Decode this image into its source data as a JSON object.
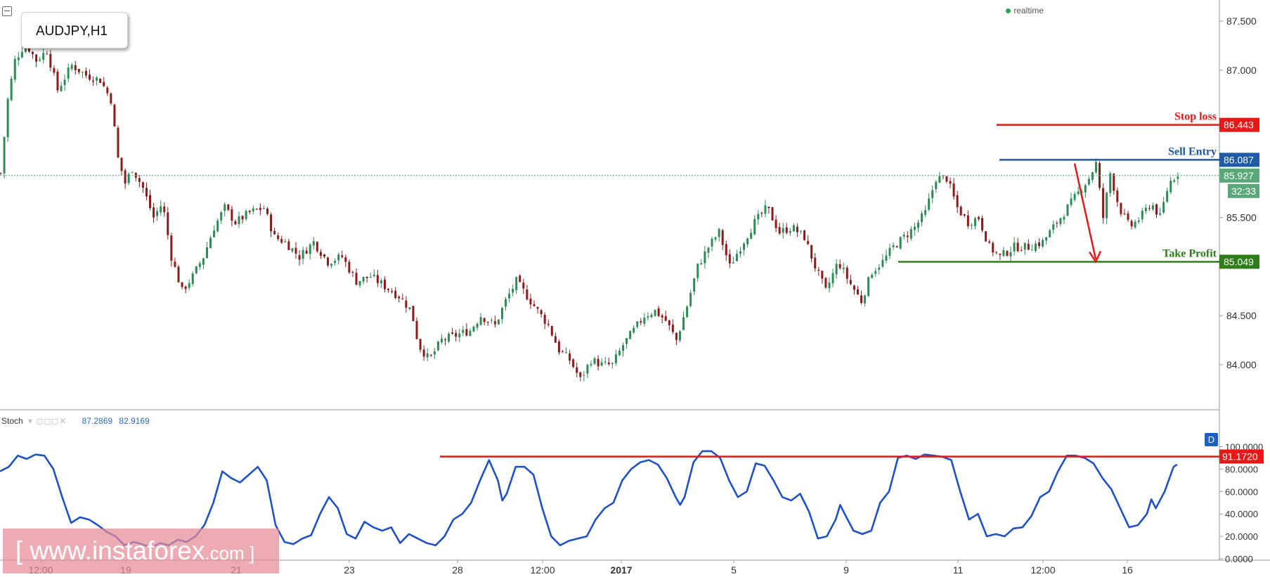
{
  "symbol": "AUDJPY,H1",
  "realtime_label": "realtime",
  "watermark": {
    "text": "[ www.instaforex",
    "suffix": ".com ]"
  },
  "stoch": {
    "name": "Stoch",
    "k_value": "87.2869",
    "d_value": "82.9169",
    "badge": "D"
  },
  "colors": {
    "up_candle": "#2e8b57",
    "down_candle": "#8b1a1a",
    "stop_loss": "#e81818",
    "sell_entry": "#1f5aa6",
    "take_profit": "#2e7d1a",
    "stoch_line": "#1f50c8",
    "last_price": "#5aa77a"
  },
  "chart_data": [
    {
      "type": "line",
      "subtype": "candlestick",
      "instrument": "AUDJPY",
      "timeframe": "H1",
      "title": "AUDJPY,H1",
      "ylim": [
        83.7,
        87.65
      ],
      "y_ticks": [
        "84.000",
        "84.500",
        "85.500",
        "87.000",
        "87.500"
      ],
      "x_ticks": [
        "12:00",
        "19",
        "21",
        "23",
        "28",
        "12:00",
        "2017",
        "5",
        "9",
        "11",
        "12:00",
        "16"
      ],
      "grid": false,
      "path_points": [
        [
          0,
          85.95
        ],
        [
          8,
          86.7
        ],
        [
          16,
          87.1
        ],
        [
          28,
          87.28
        ],
        [
          40,
          87.1
        ],
        [
          52,
          87.2
        ],
        [
          64,
          86.8
        ],
        [
          80,
          87.05
        ],
        [
          96,
          86.95
        ],
        [
          112,
          86.9
        ],
        [
          124,
          86.7
        ],
        [
          132,
          86.1
        ],
        [
          140,
          85.85
        ],
        [
          148,
          86.0
        ],
        [
          160,
          85.8
        ],
        [
          172,
          85.5
        ],
        [
          182,
          85.65
        ],
        [
          192,
          85.1
        ],
        [
          204,
          84.75
        ],
        [
          216,
          84.9
        ],
        [
          228,
          85.1
        ],
        [
          240,
          85.4
        ],
        [
          252,
          85.6
        ],
        [
          264,
          85.45
        ],
        [
          280,
          85.55
        ],
        [
          296,
          85.6
        ],
        [
          308,
          85.3
        ],
        [
          320,
          85.25
        ],
        [
          336,
          85.1
        ],
        [
          352,
          85.25
        ],
        [
          368,
          85.05
        ],
        [
          384,
          85.1
        ],
        [
          400,
          84.85
        ],
        [
          416,
          84.9
        ],
        [
          432,
          84.8
        ],
        [
          448,
          84.7
        ],
        [
          462,
          84.55
        ],
        [
          470,
          84.2
        ],
        [
          482,
          84.05
        ],
        [
          496,
          84.25
        ],
        [
          512,
          84.3
        ],
        [
          528,
          84.35
        ],
        [
          540,
          84.5
        ],
        [
          556,
          84.4
        ],
        [
          568,
          84.65
        ],
        [
          580,
          84.85
        ],
        [
          592,
          84.7
        ],
        [
          604,
          84.55
        ],
        [
          616,
          84.4
        ],
        [
          628,
          84.15
        ],
        [
          640,
          84.05
        ],
        [
          652,
          83.85
        ],
        [
          664,
          84.05
        ],
        [
          676,
          84.0
        ],
        [
          688,
          84.0
        ],
        [
          700,
          84.2
        ],
        [
          712,
          84.35
        ],
        [
          724,
          84.5
        ],
        [
          736,
          84.55
        ],
        [
          748,
          84.45
        ],
        [
          760,
          84.25
        ],
        [
          772,
          84.6
        ],
        [
          784,
          85.0
        ],
        [
          796,
          85.2
        ],
        [
          808,
          85.35
        ],
        [
          820,
          85.0
        ],
        [
          832,
          85.2
        ],
        [
          848,
          85.45
        ],
        [
          862,
          85.6
        ],
        [
          876,
          85.35
        ],
        [
          890,
          85.4
        ],
        [
          904,
          85.3
        ],
        [
          916,
          85.0
        ],
        [
          928,
          84.75
        ],
        [
          942,
          85.05
        ],
        [
          954,
          84.85
        ],
        [
          968,
          84.65
        ],
        [
          980,
          84.95
        ],
        [
          992,
          85.05
        ],
        [
          1004,
          85.2
        ],
        [
          1016,
          85.3
        ],
        [
          1028,
          85.4
        ],
        [
          1040,
          85.55
        ],
        [
          1052,
          85.9
        ],
        [
          1064,
          85.9
        ],
        [
          1076,
          85.6
        ],
        [
          1088,
          85.45
        ],
        [
          1100,
          85.5
        ],
        [
          1112,
          85.2
        ],
        [
          1124,
          85.1
        ],
        [
          1140,
          85.2
        ],
        [
          1156,
          85.2
        ],
        [
          1172,
          85.25
        ],
        [
          1188,
          85.45
        ],
        [
          1200,
          85.6
        ],
        [
          1212,
          85.75
        ],
        [
          1224,
          85.9
        ],
        [
          1232,
          86.05
        ],
        [
          1240,
          85.5
        ],
        [
          1248,
          85.95
        ],
        [
          1258,
          85.6
        ],
        [
          1270,
          85.4
        ],
        [
          1282,
          85.5
        ],
        [
          1294,
          85.65
        ],
        [
          1304,
          85.5
        ],
        [
          1314,
          85.85
        ],
        [
          1324,
          85.95
        ]
      ],
      "price_levels": [
        {
          "label": "Stop loss",
          "value": 86.443,
          "value_text": "86.443"
        },
        {
          "label": "Sell Entry",
          "value": 86.087,
          "value_text": "86.087"
        },
        {
          "label": "Take Profit",
          "value": 85.049,
          "value_text": "85.049"
        }
      ],
      "last_price": {
        "value": 85.927,
        "value_text": "85.927",
        "countdown": "32:33"
      },
      "projection_arrow": {
        "from_price": 86.0,
        "to_price": 85.049
      }
    },
    {
      "type": "line",
      "name": "Stoch",
      "ylim": [
        0,
        100
      ],
      "y_ticks": [
        "0.0000",
        "20.0000",
        "40.0000",
        "60.0000",
        "80.0000",
        "100.0000"
      ],
      "level": {
        "value": 91.172,
        "value_text": "91.1720"
      },
      "k_value": 87.2869,
      "d_value": 82.9169,
      "path_points": [
        [
          0,
          78
        ],
        [
          10,
          82
        ],
        [
          20,
          92
        ],
        [
          30,
          89
        ],
        [
          40,
          93
        ],
        [
          50,
          92
        ],
        [
          60,
          80
        ],
        [
          70,
          55
        ],
        [
          80,
          32
        ],
        [
          90,
          37
        ],
        [
          100,
          35
        ],
        [
          110,
          30
        ],
        [
          120,
          24
        ],
        [
          130,
          20
        ],
        [
          140,
          12
        ],
        [
          150,
          15
        ],
        [
          160,
          13
        ],
        [
          170,
          10
        ],
        [
          180,
          14
        ],
        [
          190,
          12
        ],
        [
          200,
          17
        ],
        [
          210,
          15
        ],
        [
          220,
          20
        ],
        [
          230,
          30
        ],
        [
          240,
          50
        ],
        [
          250,
          78
        ],
        [
          260,
          72
        ],
        [
          270,
          68
        ],
        [
          280,
          75
        ],
        [
          290,
          82
        ],
        [
          300,
          70
        ],
        [
          310,
          30
        ],
        [
          320,
          15
        ],
        [
          330,
          13
        ],
        [
          340,
          18
        ],
        [
          350,
          21
        ],
        [
          360,
          40
        ],
        [
          370,
          55
        ],
        [
          380,
          45
        ],
        [
          390,
          22
        ],
        [
          400,
          18
        ],
        [
          410,
          33
        ],
        [
          420,
          28
        ],
        [
          430,
          25
        ],
        [
          440,
          28
        ],
        [
          450,
          14
        ],
        [
          460,
          22
        ],
        [
          470,
          18
        ],
        [
          480,
          14
        ],
        [
          490,
          12
        ],
        [
          500,
          20
        ],
        [
          510,
          35
        ],
        [
          520,
          40
        ],
        [
          530,
          50
        ],
        [
          540,
          70
        ],
        [
          550,
          88
        ],
        [
          560,
          70
        ],
        [
          565,
          52
        ],
        [
          570,
          58
        ],
        [
          580,
          82
        ],
        [
          590,
          82
        ],
        [
          600,
          75
        ],
        [
          610,
          45
        ],
        [
          620,
          20
        ],
        [
          630,
          12
        ],
        [
          640,
          16
        ],
        [
          650,
          18
        ],
        [
          660,
          20
        ],
        [
          670,
          35
        ],
        [
          680,
          45
        ],
        [
          690,
          50
        ],
        [
          700,
          70
        ],
        [
          710,
          80
        ],
        [
          720,
          86
        ],
        [
          730,
          88
        ],
        [
          740,
          84
        ],
        [
          750,
          72
        ],
        [
          760,
          55
        ],
        [
          765,
          48
        ],
        [
          770,
          55
        ],
        [
          780,
          86
        ],
        [
          790,
          96
        ],
        [
          800,
          96
        ],
        [
          810,
          90
        ],
        [
          820,
          70
        ],
        [
          830,
          55
        ],
        [
          840,
          60
        ],
        [
          850,
          85
        ],
        [
          860,
          83
        ],
        [
          870,
          70
        ],
        [
          880,
          55
        ],
        [
          890,
          52
        ],
        [
          900,
          58
        ],
        [
          910,
          42
        ],
        [
          920,
          18
        ],
        [
          930,
          20
        ],
        [
          940,
          35
        ],
        [
          945,
          48
        ],
        [
          950,
          40
        ],
        [
          960,
          25
        ],
        [
          970,
          22
        ],
        [
          980,
          25
        ],
        [
          990,
          50
        ],
        [
          1000,
          60
        ],
        [
          1010,
          90
        ],
        [
          1020,
          92
        ],
        [
          1030,
          89
        ],
        [
          1040,
          93
        ],
        [
          1050,
          92
        ],
        [
          1060,
          91
        ],
        [
          1070,
          88
        ],
        [
          1080,
          60
        ],
        [
          1090,
          35
        ],
        [
          1100,
          40
        ],
        [
          1110,
          20
        ],
        [
          1120,
          22
        ],
        [
          1130,
          20
        ],
        [
          1140,
          27
        ],
        [
          1150,
          28
        ],
        [
          1160,
          38
        ],
        [
          1170,
          55
        ],
        [
          1180,
          60
        ],
        [
          1190,
          78
        ],
        [
          1200,
          92
        ],
        [
          1210,
          92
        ],
        [
          1220,
          90
        ],
        [
          1230,
          85
        ],
        [
          1240,
          72
        ],
        [
          1250,
          62
        ],
        [
          1260,
          45
        ],
        [
          1270,
          28
        ],
        [
          1280,
          30
        ],
        [
          1290,
          40
        ],
        [
          1295,
          53
        ],
        [
          1300,
          45
        ],
        [
          1310,
          60
        ],
        [
          1320,
          82
        ],
        [
          1324,
          84
        ]
      ]
    }
  ]
}
